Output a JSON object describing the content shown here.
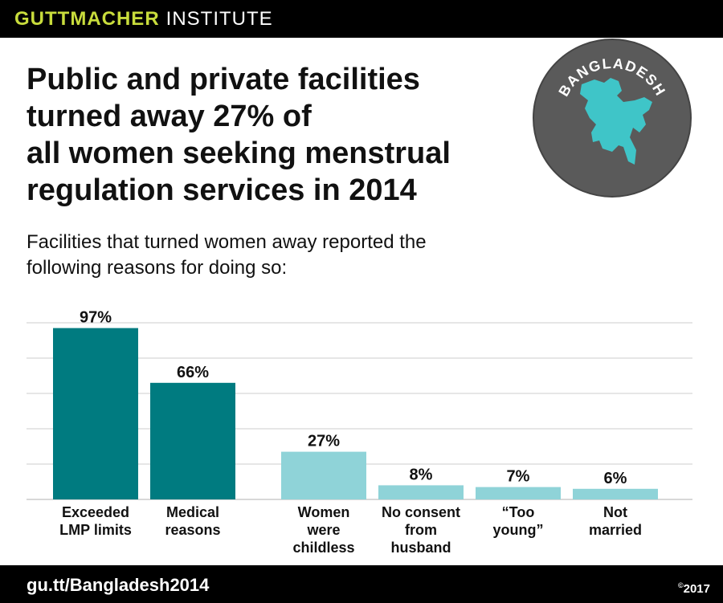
{
  "brand": {
    "name_bold": "GUTTMACHER",
    "name_regular": "INSTITUTE"
  },
  "headline": {
    "lines": [
      "Public and private facilities",
      "turned away 27% of",
      "all women seeking menstrual",
      "regulation services in 2014"
    ]
  },
  "subtitle": {
    "lines": [
      "Facilities that turned women away reported the",
      "following reasons for doing so:"
    ]
  },
  "badge": {
    "label": "BANGLADESH",
    "circle_color": "#5a5a5a",
    "map_color": "#3fc5c8",
    "icon": "bangladesh-map-icon"
  },
  "footer": {
    "url": "gu.tt/Bangladesh2014",
    "copyright_symbol": "©",
    "year": "2017"
  },
  "colors": {
    "dark_teal": "#007b80",
    "light_teal": "#8fd3d8",
    "brand_green": "#c8dc3c",
    "grid": "#cccccc"
  },
  "chart_data": {
    "type": "bar",
    "ylim": [
      0,
      100
    ],
    "grid": true,
    "gridlines": [
      0,
      20,
      40,
      60,
      80,
      100
    ],
    "categories": [
      {
        "lines": [
          "Exceeded",
          "LMP limits"
        ],
        "value": 97,
        "label": "97%",
        "color": "#007b80",
        "group": 1
      },
      {
        "lines": [
          "Medical",
          "reasons"
        ],
        "value": 66,
        "label": "66%",
        "color": "#007b80",
        "group": 1
      },
      {
        "lines": [
          "Women",
          "were",
          "childless"
        ],
        "value": 27,
        "label": "27%",
        "color": "#8fd3d8",
        "group": 2
      },
      {
        "lines": [
          "No consent",
          "from",
          "husband"
        ],
        "value": 8,
        "label": "8%",
        "color": "#8fd3d8",
        "group": 2
      },
      {
        "lines": [
          "“Too",
          "young”"
        ],
        "value": 7,
        "label": "7%",
        "color": "#8fd3d8",
        "group": 2
      },
      {
        "lines": [
          "Not",
          "married"
        ],
        "value": 6,
        "label": "6%",
        "color": "#8fd3d8",
        "group": 2
      }
    ]
  }
}
